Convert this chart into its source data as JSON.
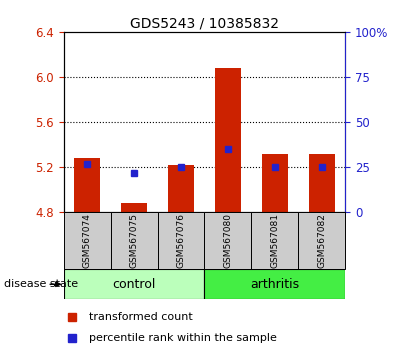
{
  "title": "GDS5243 / 10385832",
  "samples": [
    "GSM567074",
    "GSM567075",
    "GSM567076",
    "GSM567080",
    "GSM567081",
    "GSM567082"
  ],
  "bar_values": [
    5.28,
    4.88,
    5.22,
    6.08,
    5.32,
    5.32
  ],
  "percentile_values": [
    27,
    22,
    25,
    35,
    25,
    25
  ],
  "ylim_left": [
    4.8,
    6.4
  ],
  "ylim_right": [
    0,
    100
  ],
  "yticks_left": [
    4.8,
    5.2,
    5.6,
    6.0,
    6.4
  ],
  "yticks_right": [
    0,
    25,
    50,
    75,
    100
  ],
  "bar_color": "#cc2200",
  "dot_color": "#2222cc",
  "control_color": "#bbffbb",
  "arthritis_color": "#44ee44",
  "label_bg_color": "#cccccc",
  "legend_items": [
    {
      "label": "transformed count",
      "color": "#cc2200"
    },
    {
      "label": "percentile rank within the sample",
      "color": "#2222cc"
    }
  ],
  "disease_state_label": "disease state",
  "base_value": 4.8,
  "gridlines": [
    5.2,
    5.6,
    6.0
  ]
}
